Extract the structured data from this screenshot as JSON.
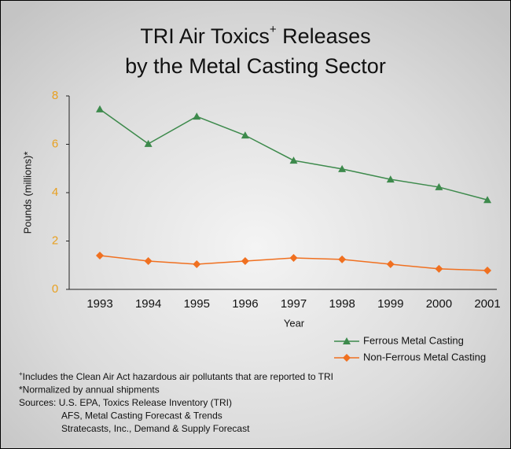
{
  "chart_data": {
    "type": "line",
    "title": [
      "TRI Air Toxics",
      "+",
      " Releases",
      "by the Metal Casting Sector"
    ],
    "x_label": "Year",
    "y_label": "Pounds (millions)*",
    "categories": [
      "1993",
      "1994",
      "1995",
      "1996",
      "1997",
      "1998",
      "1999",
      "2000",
      "2001"
    ],
    "series": [
      {
        "name": "Ferrous Metal Casting",
        "color": "#3d8a4c",
        "marker": "triangle",
        "values": [
          7.45,
          6.02,
          7.15,
          6.37,
          5.33,
          4.98,
          4.55,
          4.23,
          3.7
        ]
      },
      {
        "name": "Non-Ferrous Metal Casting",
        "color": "#f07020",
        "marker": "diamond",
        "values": [
          1.4,
          1.17,
          1.04,
          1.17,
          1.3,
          1.24,
          1.04,
          0.85,
          0.78
        ]
      }
    ],
    "ylim": [
      0,
      8
    ],
    "yticks": [
      0,
      2,
      4,
      6,
      8
    ],
    "ytick_color": "#e8a020",
    "notes": [
      [
        "+",
        "Includes the Clean Air Act hazardous air pollutants that are reported to TRI"
      ],
      [
        "*Normalized by annual shipments"
      ],
      [
        "Sources: U.S. EPA, Toxics Release Inventory (TRI)"
      ],
      [
        "AFS, Metal Casting Forecast & Trends"
      ],
      [
        "Stratecasts, Inc., Demand & Supply Forecast"
      ]
    ]
  }
}
